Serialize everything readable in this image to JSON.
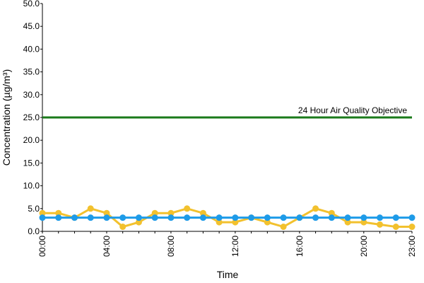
{
  "chart_data": {
    "type": "line",
    "x_label": "Time",
    "y_label": "Concentration (µg/m³)",
    "categories": [
      "00:00",
      null,
      null,
      null,
      "04:00",
      null,
      null,
      null,
      "08:00",
      null,
      null,
      null,
      "12:00",
      null,
      null,
      null,
      "16:00",
      null,
      null,
      null,
      "20:00",
      null,
      null,
      "23:00"
    ],
    "series": [
      {
        "color": "#f2c12e",
        "values": [
          4,
          4,
          3,
          5,
          4,
          1,
          2,
          4,
          4,
          5,
          4,
          2,
          2,
          3,
          2,
          1,
          3,
          5,
          4,
          2,
          2,
          1.5,
          1,
          1
        ]
      },
      {
        "color": "#1e9be8",
        "values": [
          3,
          3,
          3,
          3,
          3,
          3,
          3,
          3,
          3,
          3,
          3,
          3,
          3,
          3,
          3,
          3,
          3,
          3,
          3,
          3,
          3,
          3,
          3,
          3
        ]
      }
    ],
    "objective": {
      "value": 25,
      "label": "24 Hour Air Quality Objective",
      "color": "#1a7a1a"
    },
    "ylim": [
      0,
      50
    ],
    "yticks": [
      {
        "value": 0,
        "label": "0.0"
      },
      {
        "value": 5,
        "label": "5.0"
      },
      {
        "value": 10,
        "label": "10.0"
      },
      {
        "value": 15,
        "label": "15.0"
      },
      {
        "value": 20,
        "label": "20.0"
      },
      {
        "value": 25,
        "label": "25.0"
      },
      {
        "value": 30,
        "label": "30.0"
      },
      {
        "value": 35,
        "label": "35.0"
      },
      {
        "value": 40,
        "label": "40.0"
      },
      {
        "value": 45,
        "label": "45.0"
      },
      {
        "value": 50,
        "label": "50.0"
      }
    ],
    "grid": false
  }
}
